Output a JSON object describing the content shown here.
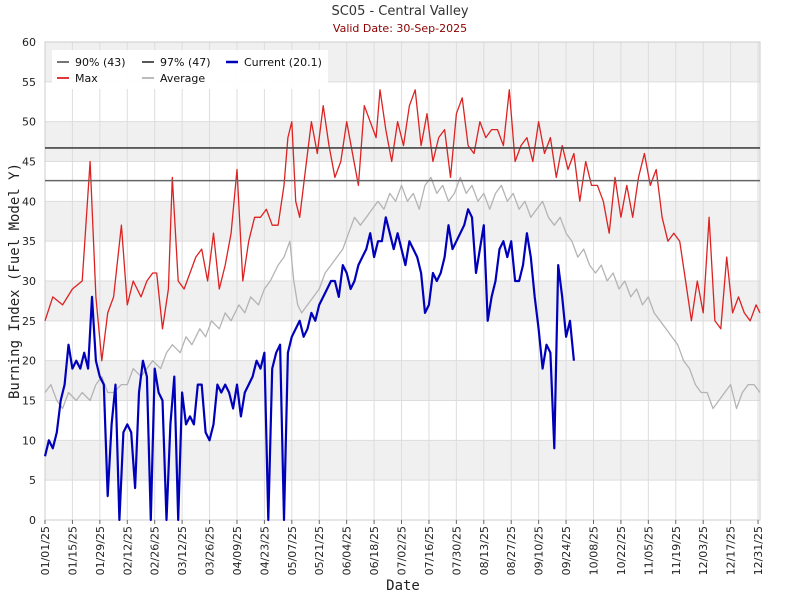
{
  "chart_data": {
    "type": "line",
    "title": "SC05 - Central Valley",
    "subtitle": "Valid Date: 30-Sep-2025",
    "xlabel": "Date",
    "ylabel": "Burning Index (Fuel Model Y)",
    "ylim": [
      0,
      60
    ],
    "yticks": [
      0,
      5,
      10,
      15,
      20,
      25,
      30,
      35,
      40,
      45,
      50,
      55,
      60
    ],
    "x_day_range": [
      1,
      366
    ],
    "xticks": [
      {
        "day": 1,
        "label": "01/01/25"
      },
      {
        "day": 15,
        "label": "01/15/25"
      },
      {
        "day": 29,
        "label": "01/29/25"
      },
      {
        "day": 43,
        "label": "02/12/25"
      },
      {
        "day": 57,
        "label": "02/26/25"
      },
      {
        "day": 71,
        "label": "03/12/25"
      },
      {
        "day": 85,
        "label": "03/26/25"
      },
      {
        "day": 99,
        "label": "04/09/25"
      },
      {
        "day": 113,
        "label": "04/23/25"
      },
      {
        "day": 127,
        "label": "05/07/25"
      },
      {
        "day": 141,
        "label": "05/21/25"
      },
      {
        "day": 155,
        "label": "06/04/25"
      },
      {
        "day": 169,
        "label": "06/18/25"
      },
      {
        "day": 183,
        "label": "07/02/25"
      },
      {
        "day": 197,
        "label": "07/16/25"
      },
      {
        "day": 211,
        "label": "07/30/25"
      },
      {
        "day": 225,
        "label": "08/13/25"
      },
      {
        "day": 239,
        "label": "08/27/25"
      },
      {
        "day": 253,
        "label": "09/10/25"
      },
      {
        "day": 267,
        "label": "09/24/25"
      },
      {
        "day": 281,
        "label": "10/08/25"
      },
      {
        "day": 295,
        "label": "10/22/25"
      },
      {
        "day": 309,
        "label": "11/05/25"
      },
      {
        "day": 323,
        "label": "11/19/25"
      },
      {
        "day": 337,
        "label": "12/03/25"
      },
      {
        "day": 351,
        "label": "12/17/25"
      },
      {
        "day": 365,
        "label": "12/31/25"
      }
    ],
    "thresholds": [
      {
        "legend": "90% (43)",
        "value": 42.6,
        "color": "#666666"
      },
      {
        "legend": "97% (47)",
        "value": 46.7,
        "color": "#444444"
      }
    ],
    "series": [
      {
        "name": "Max",
        "color": "#dd2222",
        "width": 1.3,
        "x": [
          1,
          5,
          10,
          15,
          20,
          24,
          27,
          30,
          33,
          36,
          40,
          43,
          46,
          50,
          53,
          56,
          58,
          61,
          64,
          66,
          69,
          72,
          75,
          78,
          81,
          84,
          87,
          90,
          93,
          96,
          99,
          102,
          105,
          108,
          111,
          114,
          117,
          120,
          123,
          125,
          127,
          129,
          131,
          134,
          137,
          140,
          143,
          146,
          149,
          152,
          155,
          158,
          161,
          164,
          167,
          170,
          172,
          175,
          178,
          181,
          184,
          187,
          190,
          193,
          196,
          199,
          202,
          205,
          208,
          211,
          214,
          217,
          220,
          223,
          226,
          229,
          232,
          235,
          238,
          241,
          244,
          247,
          250,
          253,
          256,
          259,
          262,
          265,
          268,
          271,
          274,
          277,
          280,
          283,
          286,
          289,
          292,
          295,
          298,
          301,
          304,
          307,
          310,
          313,
          316,
          319,
          322,
          325,
          328,
          331,
          334,
          337,
          340,
          343,
          346,
          349,
          352,
          355,
          358,
          361,
          364,
          366
        ],
        "y": [
          25,
          28,
          27,
          29,
          30,
          45,
          28,
          20,
          26,
          28,
          37,
          27,
          30,
          28,
          30,
          31,
          31,
          24,
          29,
          43,
          30,
          29,
          31,
          33,
          34,
          30,
          36,
          29,
          32,
          36,
          44,
          30,
          35,
          38,
          38,
          39,
          37,
          37,
          42,
          48,
          50,
          40,
          38,
          44,
          50,
          46,
          52,
          47,
          43,
          45,
          50,
          46,
          42,
          52,
          50,
          48,
          54,
          49,
          45,
          50,
          47,
          52,
          54,
          47,
          51,
          45,
          48,
          49,
          43,
          51,
          53,
          47,
          46,
          50,
          48,
          49,
          49,
          47,
          54,
          45,
          47,
          48,
          45,
          50,
          46,
          48,
          43,
          47,
          44,
          46,
          40,
          45,
          42,
          42,
          40,
          36,
          43,
          38,
          42,
          38,
          43,
          46,
          42,
          44,
          38,
          35,
          36,
          35,
          30,
          25,
          30,
          26,
          38,
          25,
          24,
          33,
          26,
          28,
          26,
          25,
          27,
          26
        ],
        "mark_prefix": "max-point"
      },
      {
        "name": "Average",
        "color": "#b4b4b4",
        "width": 1.3,
        "x": [
          1,
          4,
          7,
          10,
          13,
          17,
          20,
          24,
          27,
          30,
          33,
          36,
          40,
          43,
          46,
          50,
          53,
          56,
          60,
          63,
          66,
          70,
          73,
          76,
          80,
          83,
          86,
          90,
          93,
          96,
          100,
          103,
          106,
          110,
          113,
          116,
          120,
          123,
          126,
          128,
          130,
          132,
          135,
          138,
          141,
          144,
          147,
          150,
          153,
          156,
          159,
          162,
          165,
          168,
          171,
          174,
          177,
          180,
          183,
          186,
          189,
          192,
          195,
          198,
          201,
          204,
          207,
          210,
          213,
          216,
          219,
          222,
          225,
          228,
          231,
          234,
          237,
          240,
          243,
          246,
          249,
          252,
          255,
          258,
          261,
          264,
          267,
          270,
          273,
          276,
          279,
          282,
          285,
          288,
          291,
          294,
          297,
          300,
          303,
          306,
          309,
          312,
          315,
          318,
          321,
          324,
          327,
          330,
          333,
          336,
          339,
          342,
          345,
          348,
          351,
          354,
          357,
          360,
          363,
          366
        ],
        "y": [
          16,
          17,
          15,
          14,
          16,
          15,
          16,
          15,
          17,
          18,
          16,
          16,
          17,
          17,
          19,
          18,
          19,
          20,
          19,
          21,
          22,
          21,
          23,
          22,
          24,
          23,
          25,
          24,
          26,
          25,
          27,
          26,
          28,
          27,
          29,
          30,
          32,
          33,
          35,
          30,
          27,
          26,
          27,
          28,
          29,
          31,
          32,
          33,
          34,
          36,
          38,
          37,
          38,
          39,
          40,
          39,
          41,
          40,
          42,
          40,
          41,
          39,
          42,
          43,
          41,
          42,
          40,
          41,
          43,
          41,
          42,
          40,
          41,
          39,
          41,
          42,
          40,
          41,
          39,
          40,
          38,
          39,
          40,
          38,
          37,
          38,
          36,
          35,
          33,
          34,
          32,
          31,
          32,
          30,
          31,
          29,
          30,
          28,
          29,
          27,
          28,
          26,
          25,
          24,
          23,
          22,
          20,
          19,
          17,
          16,
          16,
          14,
          15,
          16,
          17,
          14,
          16,
          17,
          17,
          16
        ],
        "mark_prefix": "avg-point"
      },
      {
        "name": "Current (20.1)",
        "color": "#0000bb",
        "width": 2.2,
        "x": [
          1,
          3,
          5,
          7,
          9,
          11,
          13,
          15,
          17,
          19,
          21,
          23,
          25,
          27,
          29,
          31,
          33,
          35,
          37,
          39,
          41,
          43,
          45,
          47,
          49,
          51,
          53,
          55,
          57,
          59,
          61,
          63,
          65,
          67,
          69,
          71,
          73,
          75,
          77,
          79,
          81,
          83,
          85,
          87,
          89,
          91,
          93,
          95,
          97,
          99,
          101,
          103,
          105,
          107,
          109,
          111,
          113,
          115,
          117,
          119,
          121,
          123,
          125,
          127,
          129,
          131,
          133,
          135,
          137,
          139,
          141,
          143,
          145,
          147,
          149,
          151,
          153,
          155,
          157,
          159,
          161,
          163,
          165,
          167,
          169,
          171,
          173,
          175,
          177,
          179,
          181,
          183,
          185,
          187,
          189,
          191,
          193,
          195,
          197,
          199,
          201,
          203,
          205,
          207,
          209,
          211,
          213,
          215,
          217,
          219,
          221,
          223,
          225,
          227,
          229,
          231,
          233,
          235,
          237,
          239,
          241,
          243,
          245,
          247,
          249,
          251,
          253,
          255,
          257,
          259,
          261,
          263,
          265,
          267,
          269,
          271
        ],
        "y": [
          8,
          10,
          9,
          11,
          15,
          17,
          22,
          19,
          20,
          19,
          21,
          19,
          28,
          20,
          18,
          17,
          3,
          12,
          17,
          0,
          11,
          12,
          11,
          4,
          16,
          20,
          18,
          0,
          19,
          16,
          15,
          0,
          12,
          18,
          0,
          16,
          12,
          13,
          12,
          17,
          17,
          11,
          10,
          12,
          17,
          16,
          17,
          16,
          14,
          17,
          13,
          16,
          17,
          18,
          20,
          19,
          21,
          0,
          19,
          21,
          22,
          0,
          21,
          23,
          24,
          25,
          23,
          24,
          26,
          25,
          27,
          28,
          29,
          30,
          30,
          28,
          32,
          31,
          29,
          30,
          32,
          33,
          34,
          36,
          33,
          35,
          35,
          38,
          36,
          34,
          36,
          34,
          32,
          35,
          34,
          33,
          31,
          26,
          27,
          31,
          30,
          31,
          33,
          37,
          34,
          35,
          36,
          37,
          39,
          38,
          31,
          34,
          37,
          25,
          28,
          30,
          34,
          35,
          33,
          35,
          30,
          30,
          32,
          36,
          33,
          28,
          24,
          19,
          22,
          21,
          9,
          32,
          28,
          23,
          25,
          20
        ],
        "mark_prefix": "current-point"
      }
    ],
    "legend": {
      "placement": "top-left",
      "items": [
        {
          "label": "90% (43)",
          "color": "#666666"
        },
        {
          "label": "97% (47)",
          "color": "#444444"
        },
        {
          "label": "Current (20.1)",
          "color": "#0000bb"
        },
        {
          "label": "Max",
          "color": "#dd2222"
        },
        {
          "label": "Average",
          "color": "#b4b4b4"
        }
      ]
    }
  }
}
